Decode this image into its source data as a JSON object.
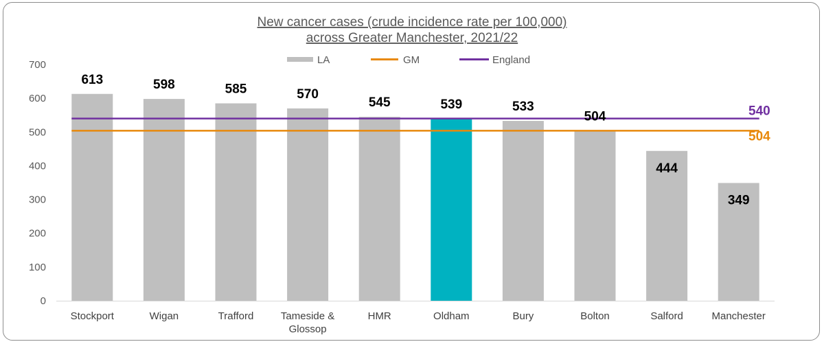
{
  "chart_data": {
    "type": "bar",
    "title": [
      "New cancer cases (crude incidence rate per 100,000)",
      "across Greater Manchester, 2021/22"
    ],
    "xlabel": "",
    "ylabel": "",
    "categories": [
      "Stockport",
      "Wigan",
      "Trafford",
      "Tameside & Glossop",
      "HMR",
      "Oldham",
      "Bury",
      "Bolton",
      "Salford",
      "Manchester"
    ],
    "category_lines": [
      [
        "Stockport"
      ],
      [
        "Wigan"
      ],
      [
        "Trafford"
      ],
      [
        "Tameside &",
        "Glossop"
      ],
      [
        "HMR"
      ],
      [
        "Oldham"
      ],
      [
        "Bury"
      ],
      [
        "Bolton"
      ],
      [
        "Salford"
      ],
      [
        "Manchester"
      ]
    ],
    "series": [
      {
        "name": "LA",
        "type": "bar",
        "values": [
          613,
          598,
          585,
          570,
          545,
          539,
          533,
          504,
          444,
          349
        ]
      },
      {
        "name": "GM",
        "type": "line",
        "value": 504,
        "label": "504"
      },
      {
        "name": "England",
        "type": "line",
        "value": 540,
        "label": "540"
      }
    ],
    "value_labels": [
      "613",
      "598",
      "585",
      "570",
      "545",
      "539",
      "533",
      "504",
      "444",
      "349"
    ],
    "highlight_category": "Oldham",
    "ylim": [
      0,
      700
    ],
    "yticks": [
      0,
      100,
      200,
      300,
      400,
      500,
      600,
      700
    ],
    "ytick_labels": [
      "0",
      "100",
      "200",
      "300",
      "400",
      "500",
      "600",
      "700"
    ],
    "grid": false,
    "legend_position": "top-center",
    "colors": {
      "bar": "#bfbfbf",
      "highlight": "#00b2c1",
      "gm_line": "#e8890c",
      "england_line": "#7030a0",
      "axis": "#d9d9d9",
      "text": "#595959"
    }
  }
}
